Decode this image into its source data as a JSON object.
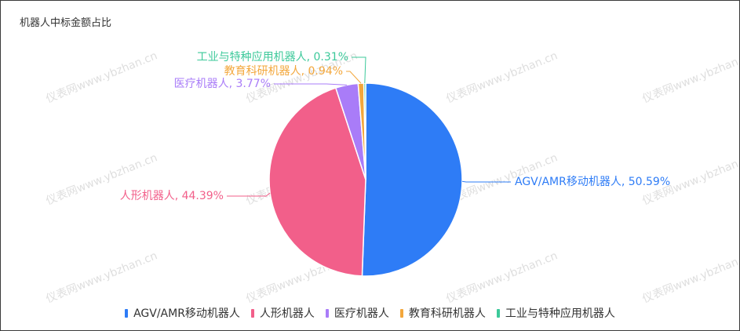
{
  "chart_data": {
    "type": "pie",
    "title": "机器人中标金额占比",
    "slices": [
      {
        "name": "AGV/AMR移动机器人",
        "value": 50.59,
        "label": "AGV/AMR移动机器人, 50.59%",
        "color": "#2e7cf6"
      },
      {
        "name": "人形机器人",
        "value": 44.39,
        "label": "人形机器人, 44.39%",
        "color": "#f25f8a"
      },
      {
        "name": "医疗机器人",
        "value": 3.77,
        "label": "医疗机器人, 3.77%",
        "color": "#a97cf8"
      },
      {
        "name": "教育科研机器人",
        "value": 0.94,
        "label": "教育科研机器人, 0.94%",
        "color": "#f3a73b"
      },
      {
        "name": "工业与特种应用机器人",
        "value": 0.31,
        "label": "工业与特种应用机器人, 0.31%",
        "color": "#3cc99a"
      }
    ],
    "legend_position": "bottom"
  },
  "watermark": "仪表网www.ybzhan.cn"
}
